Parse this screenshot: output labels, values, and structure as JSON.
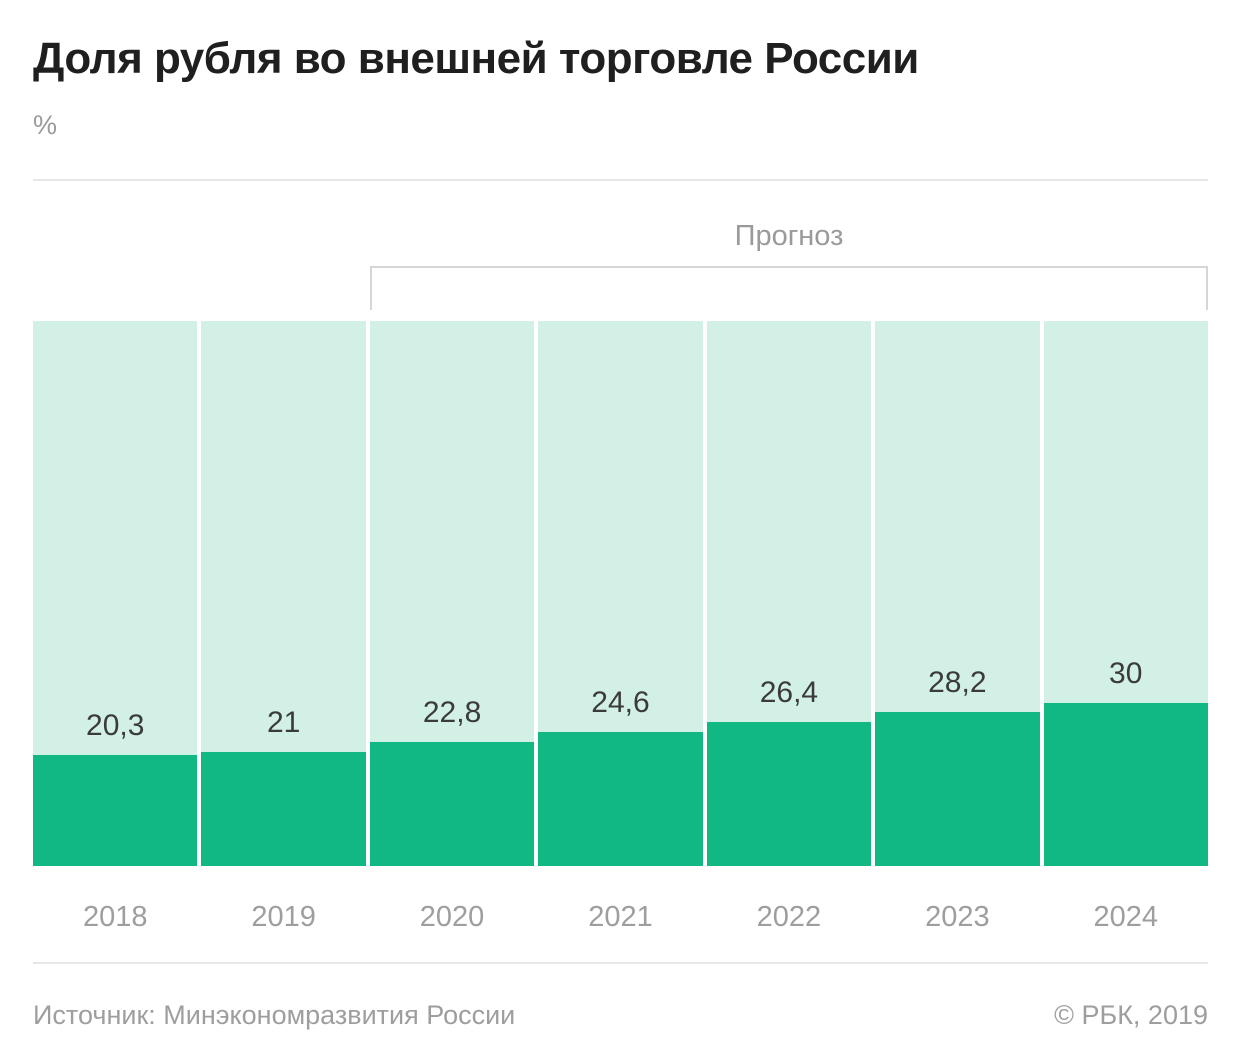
{
  "header": {
    "title": "Доля рубля во внешней торговле России",
    "unit": "%"
  },
  "forecast": {
    "label": "Прогноз",
    "from_category": "2020",
    "to_category": "2024"
  },
  "chart_data": {
    "type": "bar",
    "title": "Доля рубля во внешней торговле России",
    "ylabel": "%",
    "categories": [
      "2018",
      "2019",
      "2020",
      "2021",
      "2022",
      "2023",
      "2024"
    ],
    "values": [
      20.3,
      21,
      22.8,
      24.6,
      26.4,
      28.2,
      30
    ],
    "value_labels": [
      "20,3",
      "21",
      "22,8",
      "24,6",
      "26,4",
      "28,2",
      "30"
    ],
    "ylim": [
      0,
      100
    ],
    "grid": false,
    "legend": false,
    "annotations": [
      "Прогноз"
    ],
    "colors": {
      "fill": "#12b884",
      "track": "#d2f0e6",
      "value_label": "#3b3b3b",
      "axis_text": "#9e9e9e",
      "bracket": "#d6d6d6"
    }
  },
  "footer": {
    "source": "Источник: Минэкономразвития России",
    "copyright": "© РБК, 2019"
  }
}
